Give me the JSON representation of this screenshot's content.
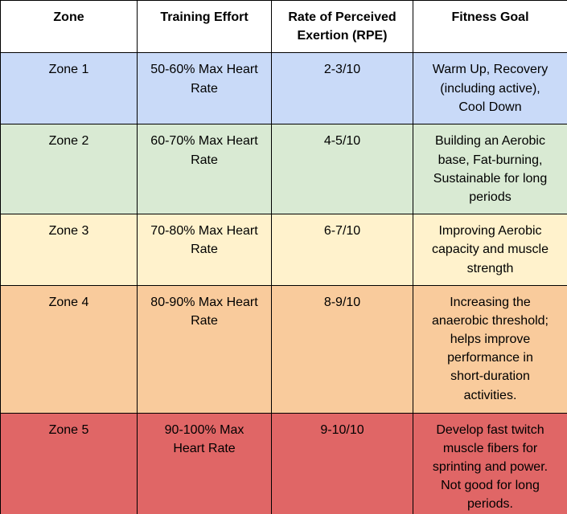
{
  "table": {
    "title_semantic": "Heart rate training zones table",
    "border_color": "#000000",
    "header": {
      "bg": "#ffffff",
      "columns": [
        "Zone",
        "Training Effort",
        "Rate of Perceived\nExertion (RPE)",
        "Fitness Goal"
      ]
    },
    "rows": [
      {
        "zone": "Zone 1",
        "effort": "50-60% Max Heart\nRate",
        "rpe": "2-3/10",
        "goal": "Warm Up, Recovery\n(including active),\nCool Down",
        "bg": "#c9daf8"
      },
      {
        "zone": "Zone 2",
        "effort": "60-70% Max Heart\nRate",
        "rpe": "4-5/10",
        "goal": "Building an Aerobic\nbase, Fat-burning,\nSustainable for long\nperiods",
        "bg": "#d9ead3"
      },
      {
        "zone": "Zone 3",
        "effort": "70-80% Max Heart\nRate",
        "rpe": "6-7/10",
        "goal": "Improving Aerobic\ncapacity and muscle\nstrength",
        "bg": "#fff2cc"
      },
      {
        "zone": "Zone 4",
        "effort": "80-90% Max Heart\nRate",
        "rpe": "8-9/10",
        "goal": "Increasing the\nanaerobic threshold;\nhelps improve\nperformance in\nshort-duration\nactivities.",
        "bg": "#f9cb9c"
      },
      {
        "zone": "Zone 5",
        "effort": "90-100% Max\nHeart Rate",
        "rpe": "9-10/10",
        "goal": "Develop fast twitch\nmuscle fibers for\nsprinting and power.\nNot good for long\nperiods.",
        "bg": "#e06666"
      }
    ]
  }
}
